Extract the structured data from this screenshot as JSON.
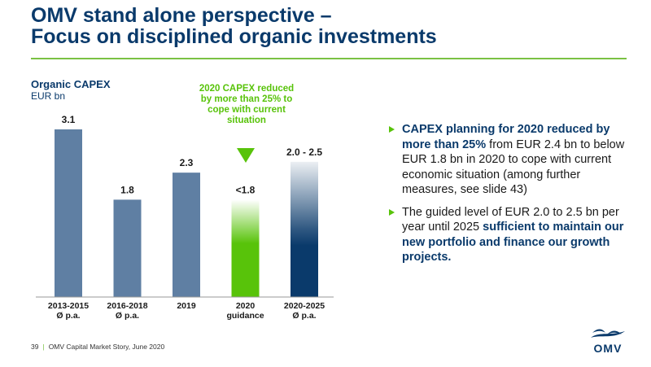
{
  "slide": {
    "title_line1": "OMV stand alone perspective –",
    "title_line2": "Focus on disciplined organic investments",
    "page_number": "39",
    "footer_text": "OMV Capital Market Story, June 2020",
    "logo_text": "OMV"
  },
  "colors": {
    "navy": "#0a3a6b",
    "steel_blue": "#5f7fa3",
    "green": "#58c30a",
    "rule_green": "#7ac143"
  },
  "callout": {
    "text": "2020 CAPEX reduced by more than 25% to cope with current situation"
  },
  "bullets": [
    {
      "highlight": "CAPEX planning for 2020 reduced by more than 25%",
      "text": " from EUR 2.4 bn to below EUR 1.8 bn in 2020 to cope with current economic situation (among further measures, see slide 43)"
    },
    {
      "text_before": "The guided level of EUR 2.0 to 2.5 bn per year until 2025 ",
      "highlight": "sufficient to maintain our new portfolio and finance our growth projects."
    }
  ],
  "chart_data": {
    "type": "bar",
    "title": "Organic CAPEX",
    "ylabel": "EUR bn",
    "ylim": [
      0,
      3.3
    ],
    "categories": [
      [
        "2013-2015",
        "Ø p.a."
      ],
      [
        "2016-2018",
        "Ø p.a."
      ],
      [
        "2019"
      ],
      [
        "2020",
        "guidance"
      ],
      [
        "2020-2025",
        "Ø p.a."
      ]
    ],
    "values": [
      3.1,
      1.8,
      2.3,
      1.8,
      2.5
    ],
    "data_labels": [
      "3.1",
      "1.8",
      "2.3",
      "<1.8",
      "2.0 - 2.5"
    ],
    "styles": [
      "solid",
      "solid",
      "solid",
      "fade-green",
      "fade-navy"
    ]
  }
}
